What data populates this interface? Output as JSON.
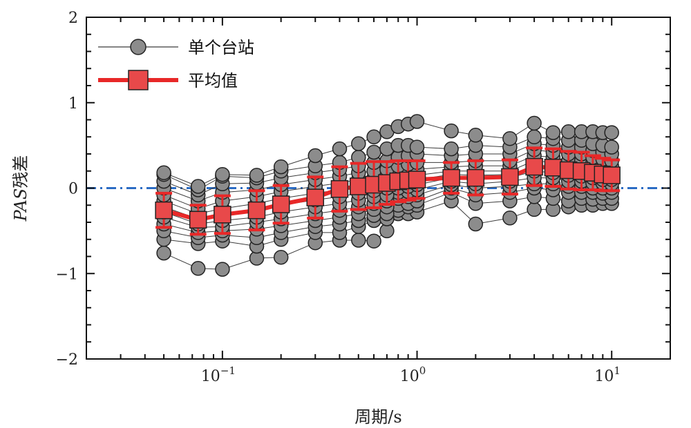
{
  "chart_data": {
    "type": "scatter",
    "x_scale": "log",
    "xlim": [
      0.02,
      20
    ],
    "ylim": [
      -2,
      2
    ],
    "xlabel": "周期/s",
    "ylabel_italic": "PAS",
    "ylabel_suffix": "残差",
    "y_ticks": [
      {
        "value": -2,
        "label": "−2"
      },
      {
        "value": -1,
        "label": "−1"
      },
      {
        "value": 0,
        "label": "0"
      },
      {
        "value": 1,
        "label": "1"
      },
      {
        "value": 2,
        "label": "2"
      }
    ],
    "x_ticks": [
      {
        "value": 0.1,
        "base": "10",
        "exp": "−1"
      },
      {
        "value": 1,
        "base": "10",
        "exp": "0"
      },
      {
        "value": 10,
        "base": "10",
        "exp": "1"
      }
    ],
    "legend": {
      "position": "top-left",
      "items": [
        {
          "label": "单个台站",
          "type": "circle"
        },
        {
          "label": "平均值",
          "type": "square"
        }
      ]
    },
    "periods": [
      0.05,
      0.075,
      0.1,
      0.15,
      0.2,
      0.3,
      0.4,
      0.5,
      0.6,
      0.7,
      0.8,
      0.9,
      1.0,
      1.5,
      2.0,
      3.0,
      4.0,
      5.0,
      6.0,
      7.0,
      8.0,
      9.0,
      10.0
    ],
    "mean_series": {
      "name": "平均值",
      "values": [
        -0.26,
        -0.37,
        -0.31,
        -0.26,
        -0.19,
        -0.11,
        -0.01,
        0.02,
        0.04,
        0.06,
        0.08,
        0.09,
        0.1,
        0.12,
        0.12,
        0.13,
        0.25,
        0.24,
        0.21,
        0.2,
        0.18,
        0.16,
        0.15
      ],
      "errors": [
        0.2,
        0.17,
        0.22,
        0.23,
        0.22,
        0.24,
        0.26,
        0.27,
        0.27,
        0.25,
        0.24,
        0.23,
        0.22,
        0.18,
        0.2,
        0.2,
        0.22,
        0.22,
        0.22,
        0.22,
        0.2,
        0.19,
        0.18
      ]
    },
    "station_series": {
      "name": "单个台站",
      "station_values": [
        [
          -0.76,
          -0.94,
          -0.95,
          -0.82,
          -0.81,
          -0.64,
          -0.61,
          -0.61,
          -0.62,
          -0.5,
          -0.3,
          -0.3,
          -0.28,
          -0.15,
          -0.42,
          -0.35,
          -0.25,
          -0.25,
          -0.22,
          -0.2,
          -0.2,
          -0.18,
          -0.18
        ],
        [
          -0.6,
          -0.65,
          -0.62,
          -0.68,
          -0.6,
          -0.52,
          -0.52,
          -0.45,
          -0.38,
          -0.36,
          -0.26,
          -0.22,
          -0.2,
          -0.05,
          -0.18,
          -0.15,
          -0.1,
          -0.12,
          -0.15,
          -0.12,
          -0.13,
          -0.12,
          -0.12
        ],
        [
          -0.5,
          -0.58,
          -0.55,
          -0.58,
          -0.52,
          -0.45,
          -0.42,
          -0.38,
          -0.32,
          -0.3,
          -0.2,
          -0.18,
          -0.15,
          0.0,
          -0.08,
          -0.05,
          0.0,
          -0.02,
          -0.05,
          -0.05,
          -0.05,
          -0.06,
          -0.05
        ],
        [
          -0.42,
          -0.52,
          -0.5,
          -0.48,
          -0.44,
          -0.38,
          -0.34,
          -0.3,
          -0.25,
          -0.22,
          -0.12,
          -0.1,
          -0.08,
          0.04,
          0.0,
          0.02,
          0.05,
          0.05,
          0.02,
          0.02,
          0.0,
          0.0,
          0.0
        ],
        [
          -0.34,
          -0.46,
          -0.45,
          -0.4,
          -0.36,
          -0.3,
          -0.26,
          -0.22,
          -0.18,
          -0.15,
          -0.05,
          -0.04,
          -0.02,
          0.08,
          0.05,
          0.08,
          0.12,
          0.12,
          0.08,
          0.08,
          0.06,
          0.06,
          0.05
        ],
        [
          -0.28,
          -0.42,
          -0.38,
          -0.34,
          -0.28,
          -0.22,
          -0.18,
          -0.14,
          -0.1,
          -0.08,
          0.0,
          0.02,
          0.04,
          0.12,
          0.1,
          0.12,
          0.2,
          0.18,
          0.15,
          0.14,
          0.12,
          0.1,
          0.1
        ],
        [
          -0.22,
          -0.36,
          -0.32,
          -0.26,
          -0.2,
          -0.14,
          -0.1,
          -0.06,
          -0.03,
          0.0,
          0.06,
          0.08,
          0.1,
          0.16,
          0.15,
          0.16,
          0.26,
          0.24,
          0.2,
          0.2,
          0.18,
          0.16,
          0.15
        ],
        [
          -0.15,
          -0.3,
          -0.24,
          -0.18,
          -0.12,
          -0.06,
          -0.02,
          0.02,
          0.05,
          0.07,
          0.12,
          0.14,
          0.15,
          0.2,
          0.2,
          0.2,
          0.32,
          0.3,
          0.26,
          0.26,
          0.24,
          0.22,
          0.2
        ],
        [
          -0.08,
          -0.24,
          -0.15,
          -0.1,
          -0.04,
          0.02,
          0.06,
          0.1,
          0.12,
          0.15,
          0.2,
          0.2,
          0.22,
          0.25,
          0.26,
          0.26,
          0.38,
          0.36,
          0.32,
          0.32,
          0.3,
          0.28,
          0.26
        ],
        [
          0.0,
          -0.15,
          -0.05,
          -0.02,
          0.04,
          0.1,
          0.14,
          0.18,
          0.2,
          0.22,
          0.26,
          0.28,
          0.3,
          0.3,
          0.32,
          0.32,
          0.45,
          0.42,
          0.4,
          0.4,
          0.36,
          0.34,
          0.32
        ],
        [
          0.08,
          -0.08,
          0.05,
          0.06,
          0.12,
          0.18,
          0.22,
          0.26,
          0.3,
          0.32,
          0.36,
          0.38,
          0.4,
          0.38,
          0.4,
          0.4,
          0.52,
          0.5,
          0.48,
          0.48,
          0.44,
          0.42,
          0.4
        ],
        [
          0.16,
          -0.02,
          0.14,
          0.12,
          0.2,
          0.26,
          0.3,
          0.36,
          0.42,
          0.46,
          0.5,
          0.5,
          0.48,
          0.46,
          0.5,
          0.48,
          0.6,
          0.58,
          0.56,
          0.56,
          0.52,
          0.5,
          0.48
        ],
        [
          0.18,
          0.02,
          0.16,
          0.15,
          0.25,
          0.38,
          0.46,
          0.52,
          0.6,
          0.66,
          0.72,
          0.75,
          0.78,
          0.67,
          0.62,
          0.58,
          0.76,
          0.65,
          0.66,
          0.66,
          0.66,
          0.65,
          0.65
        ]
      ]
    }
  },
  "colors": {
    "station_fill": "#8c8c8c",
    "station_line": "#3a3a3a",
    "mean_fill": "#e8494a",
    "mean_line": "#e82828",
    "zero_line": "#2b6cc4",
    "axis": "#111111"
  }
}
